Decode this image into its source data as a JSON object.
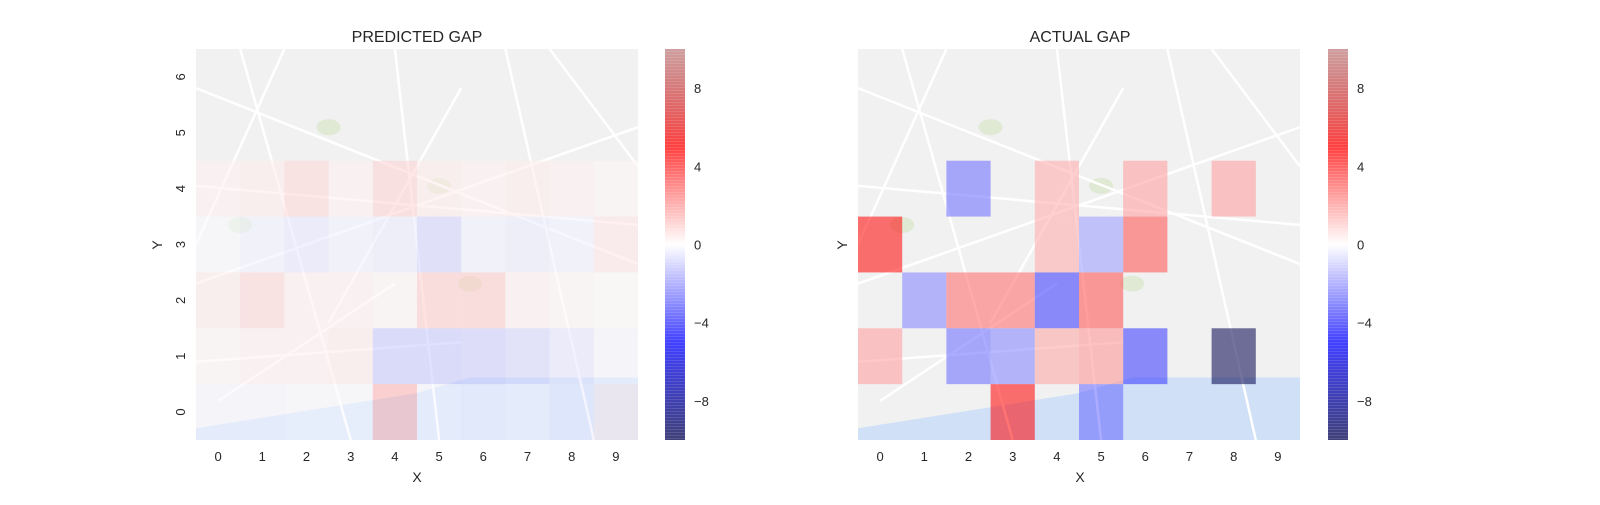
{
  "chart_data": [
    {
      "type": "heatmap",
      "title": "PREDICTED GAP",
      "xlabel": "X",
      "ylabel": "Y",
      "x_ticks": [
        "0",
        "1",
        "2",
        "3",
        "4",
        "5",
        "6",
        "7",
        "8",
        "9"
      ],
      "y_ticks": [
        "0",
        "1",
        "2",
        "3",
        "4",
        "5",
        "6"
      ],
      "colorbar_ticks": [
        "8",
        "4",
        "0",
        "−4",
        "−8"
      ],
      "colorbar_values": [
        8,
        4,
        0,
        -4,
        -8
      ],
      "vmin": -10,
      "vmax": 10,
      "colormap": "seismic",
      "background": "street map (Porto)",
      "y_rows_top_to_bottom": [
        6,
        5,
        4,
        3,
        2,
        1,
        0
      ],
      "cells_top_to_bottom": [
        [
          0,
          0,
          0,
          0,
          0,
          0,
          0,
          0,
          0,
          0
        ],
        [
          0,
          0,
          0,
          0,
          0,
          0,
          0,
          0,
          0,
          0
        ],
        [
          0.3,
          0.4,
          0.8,
          0.3,
          0.9,
          0.4,
          0.3,
          0.4,
          0.3,
          0.2
        ],
        [
          -0.1,
          -0.3,
          -0.5,
          -0.3,
          -0.4,
          -0.9,
          -0.3,
          -0.4,
          -0.3,
          0.5
        ],
        [
          0.4,
          0.8,
          0.3,
          0.3,
          0.2,
          1.0,
          1.0,
          0.3,
          0.2,
          0.1
        ],
        [
          0.2,
          0.3,
          0.3,
          0.4,
          -1.1,
          -1.1,
          -1.0,
          -0.8,
          -0.5,
          -0.2
        ],
        [
          -0.2,
          -0.2,
          -0.1,
          -0.1,
          1.5,
          -0.2,
          -0.3,
          -0.2,
          -0.4,
          0.4
        ]
      ]
    },
    {
      "type": "heatmap",
      "title": "ACTUAL GAP",
      "xlabel": "X",
      "ylabel": "Y",
      "x_ticks": [
        "0",
        "1",
        "2",
        "3",
        "4",
        "5",
        "6",
        "7",
        "8",
        "9"
      ],
      "y_ticks": [],
      "colorbar_ticks": [
        "8",
        "4",
        "0",
        "−4",
        "−8"
      ],
      "colorbar_values": [
        8,
        4,
        0,
        -4,
        -8
      ],
      "vmin": -10,
      "vmax": 10,
      "colormap": "seismic",
      "background": "street map (Porto)",
      "y_rows_top_to_bottom": [
        6,
        5,
        4,
        3,
        2,
        1,
        0
      ],
      "cells_top_to_bottom": [
        [
          0,
          0,
          0,
          0,
          0,
          0,
          0,
          0,
          0,
          0
        ],
        [
          0,
          0,
          0,
          0,
          0,
          0,
          0,
          0,
          0,
          0
        ],
        [
          0,
          0,
          -3,
          0,
          1.7,
          0,
          2,
          0,
          2,
          0
        ],
        [
          5,
          0,
          0,
          0,
          1.7,
          -2,
          3.5,
          0,
          0,
          0
        ],
        [
          0,
          -2.5,
          3,
          3,
          -4,
          3.5,
          0,
          0,
          0,
          0
        ],
        [
          2,
          0,
          -3,
          -2.5,
          1.8,
          2.2,
          -4,
          0,
          -10,
          0
        ],
        [
          0,
          0,
          0,
          5,
          0,
          -3,
          0,
          0,
          0,
          0
        ]
      ]
    }
  ]
}
